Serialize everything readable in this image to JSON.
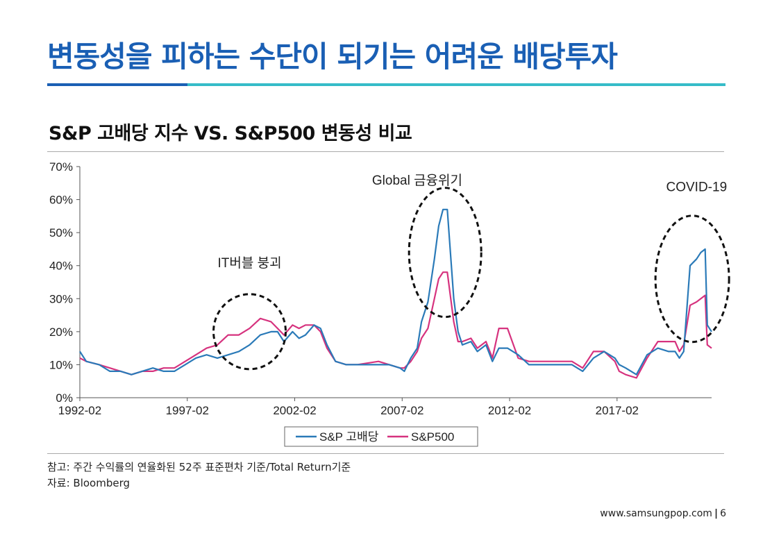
{
  "page": {
    "title": "변동성을 피하는 수단이 되기는 어려운 배당투자",
    "note": "참고: 주간 수익률의 연율화된 52주 표준편차 기준/Total Return기준",
    "source": "자료: Bloomberg",
    "website": "www.samsungpop.com",
    "page_number": "6"
  },
  "colors": {
    "title": "#1a5fb4",
    "accent_bar": "#36bcc8",
    "series_high_dividend": "#2a7ab8",
    "series_sp500": "#d6327e"
  },
  "chart_data": {
    "type": "line",
    "title": "S&P 고배당 지수 VS. S&P500 변동성 비교",
    "xlabel": "",
    "ylabel": "",
    "x_range": [
      1992.1,
      2021.5
    ],
    "ylim": [
      0,
      70
    ],
    "yticks": [
      0,
      10,
      20,
      30,
      40,
      50,
      60,
      70
    ],
    "ytick_labels": [
      "0%",
      "10%",
      "20%",
      "30%",
      "40%",
      "50%",
      "60%",
      "70%"
    ],
    "xticks": [
      1992.1,
      1997.1,
      2002.1,
      2007.1,
      2012.1,
      2017.1
    ],
    "xtick_labels": [
      "1992-02",
      "1997-02",
      "2002-02",
      "2007-02",
      "2012-02",
      "2017-02"
    ],
    "legend_position": "bottom",
    "annotations": [
      "IT버블 붕괴",
      "Global 금융위기",
      "COVID-19"
    ],
    "series": [
      {
        "name": "S&P 고배당",
        "x": [
          1992.1,
          1992.4,
          1993.0,
          1993.5,
          1994.0,
          1994.5,
          1995.0,
          1995.5,
          1996.0,
          1996.5,
          1997.0,
          1997.5,
          1998.0,
          1998.5,
          1999.0,
          1999.5,
          2000.0,
          2000.5,
          2001.0,
          2001.3,
          2001.6,
          2002.0,
          2002.3,
          2002.6,
          2003.0,
          2003.3,
          2003.6,
          2004.0,
          2004.5,
          2005.0,
          2006.0,
          2006.5,
          2007.0,
          2007.2,
          2007.5,
          2007.8,
          2008.0,
          2008.3,
          2008.6,
          2008.8,
          2009.0,
          2009.2,
          2009.5,
          2009.7,
          2009.9,
          2010.3,
          2010.6,
          2011.0,
          2011.3,
          2011.6,
          2012.0,
          2012.5,
          2013.0,
          2014.0,
          2015.0,
          2015.5,
          2016.0,
          2016.5,
          2017.0,
          2017.2,
          2017.5,
          2018.0,
          2018.5,
          2019.0,
          2019.5,
          2019.8,
          2020.0,
          2020.2,
          2020.5,
          2020.8,
          2021.0,
          2021.2,
          2021.3,
          2021.5
        ],
        "values": [
          14,
          11,
          10,
          8,
          8,
          7,
          8,
          9,
          8,
          8,
          10,
          12,
          13,
          12,
          13,
          14,
          16,
          19,
          20,
          20,
          17,
          20,
          18,
          19,
          22,
          21,
          16,
          11,
          10,
          10,
          10,
          10,
          9,
          8,
          12,
          15,
          23,
          29,
          42,
          52,
          57,
          57,
          30,
          20,
          16,
          17,
          14,
          16,
          11,
          15,
          15,
          13,
          10,
          10,
          10,
          8,
          12,
          14,
          12,
          10,
          9,
          7,
          13,
          15,
          14,
          14,
          12,
          14,
          40,
          42,
          44,
          45,
          22,
          20
        ],
        "color": "#2a7ab8"
      },
      {
        "name": "S&P500",
        "x": [
          1992.1,
          1992.4,
          1993.0,
          1993.5,
          1994.0,
          1994.5,
          1995.0,
          1995.5,
          1996.0,
          1996.5,
          1997.0,
          1997.5,
          1998.0,
          1998.5,
          1999.0,
          1999.5,
          2000.0,
          2000.5,
          2001.0,
          2001.3,
          2001.6,
          2002.0,
          2002.3,
          2002.6,
          2003.0,
          2003.3,
          2003.6,
          2004.0,
          2004.5,
          2005.0,
          2006.0,
          2006.5,
          2007.0,
          2007.2,
          2007.5,
          2007.8,
          2008.0,
          2008.3,
          2008.6,
          2008.8,
          2009.0,
          2009.2,
          2009.5,
          2009.7,
          2009.9,
          2010.3,
          2010.6,
          2011.0,
          2011.3,
          2011.6,
          2012.0,
          2012.5,
          2013.0,
          2014.0,
          2015.0,
          2015.5,
          2016.0,
          2016.5,
          2017.0,
          2017.2,
          2017.5,
          2018.0,
          2018.5,
          2019.0,
          2019.5,
          2019.8,
          2020.0,
          2020.2,
          2020.5,
          2020.8,
          2021.0,
          2021.2,
          2021.3,
          2021.5
        ],
        "values": [
          12,
          11,
          10,
          9,
          8,
          7,
          8,
          8,
          9,
          9,
          11,
          13,
          15,
          16,
          19,
          19,
          21,
          24,
          23,
          21,
          19,
          22,
          21,
          22,
          22,
          20,
          15,
          11,
          10,
          10,
          11,
          10,
          9,
          9,
          11,
          14,
          18,
          21,
          30,
          36,
          38,
          38,
          23,
          17,
          17,
          18,
          15,
          17,
          12,
          21,
          21,
          12,
          11,
          11,
          11,
          9,
          14,
          14,
          11,
          8,
          7,
          6,
          12,
          17,
          17,
          17,
          14,
          16,
          28,
          29,
          30,
          31,
          16,
          15
        ],
        "color": "#d6327e"
      }
    ]
  }
}
